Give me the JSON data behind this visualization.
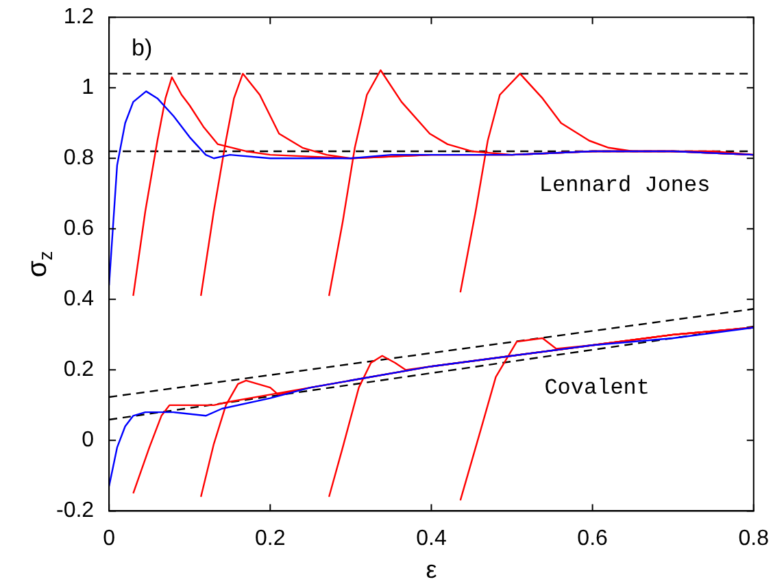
{
  "chart_data": {
    "type": "line",
    "xlabel": "ε",
    "ylabel": "σ$_{z}$",
    "xlim": [
      0,
      0.8
    ],
    "xticks": [
      0,
      0.2,
      0.4,
      0.6,
      0.8
    ],
    "ylim": [
      -0.2,
      1.2
    ],
    "yticks": [
      -0.2,
      0,
      0.2,
      0.4,
      0.6,
      0.8,
      1,
      1.2
    ],
    "grid": false,
    "legend": false,
    "marker": "none",
    "annotations": [
      "b)",
      "Lennard Jones",
      "Covalent"
    ],
    "series": [
      {
        "color": "#000000",
        "line_style": "dashed",
        "x": [
          0,
          0.8
        ],
        "values": [
          1.04,
          1.04
        ]
      },
      {
        "color": "#000000",
        "line_style": "dashed",
        "x": [
          0,
          0.8
        ],
        "values": [
          0.82,
          0.82
        ]
      },
      {
        "color": "#000000",
        "line_style": "dashed",
        "x": [
          0,
          0.8
        ],
        "values": [
          0.123,
          0.373
        ]
      },
      {
        "color": "#000000",
        "line_style": "dashed",
        "x": [
          0,
          0.8
        ],
        "values": [
          0.059,
          0.323
        ]
      },
      {
        "color": "#ff0000",
        "x": [
          0.03,
          0.045,
          0.06,
          0.07,
          0.078,
          0.09,
          0.1,
          0.117,
          0.135,
          0.17,
          0.2,
          0.3,
          0.4,
          0.5,
          0.6,
          0.7,
          0.8
        ],
        "values": [
          0.41,
          0.65,
          0.85,
          0.97,
          1.03,
          0.98,
          0.95,
          0.89,
          0.84,
          0.82,
          0.81,
          0.8,
          0.81,
          0.81,
          0.82,
          0.82,
          0.81
        ]
      },
      {
        "color": "#ff0000",
        "x": [
          0.114,
          0.13,
          0.145,
          0.155,
          0.166,
          0.187,
          0.211,
          0.24,
          0.27,
          0.3,
          0.4,
          0.5,
          0.6,
          0.7,
          0.8
        ],
        "values": [
          0.41,
          0.65,
          0.85,
          0.97,
          1.04,
          0.98,
          0.87,
          0.83,
          0.81,
          0.8,
          0.81,
          0.81,
          0.82,
          0.82,
          0.81
        ]
      },
      {
        "color": "#ff0000",
        "x": [
          0.273,
          0.29,
          0.305,
          0.32,
          0.337,
          0.363,
          0.398,
          0.42,
          0.45,
          0.5,
          0.6,
          0.7,
          0.8
        ],
        "values": [
          0.41,
          0.62,
          0.83,
          0.98,
          1.05,
          0.96,
          0.87,
          0.84,
          0.82,
          0.81,
          0.82,
          0.82,
          0.81
        ]
      },
      {
        "color": "#ff0000",
        "x": [
          0.436,
          0.455,
          0.47,
          0.485,
          0.51,
          0.538,
          0.561,
          0.596,
          0.62,
          0.65,
          0.7,
          0.75,
          0.8
        ],
        "values": [
          0.42,
          0.65,
          0.85,
          0.98,
          1.04,
          0.97,
          0.9,
          0.85,
          0.83,
          0.82,
          0.82,
          0.82,
          0.81
        ]
      },
      {
        "color": "#ff0000",
        "x": [
          0.03,
          0.05,
          0.065,
          0.075,
          0.1,
          0.13,
          0.15,
          0.2,
          0.25,
          0.3,
          0.4,
          0.5,
          0.6,
          0.7,
          0.8
        ],
        "values": [
          -0.15,
          -0.02,
          0.07,
          0.1,
          0.1,
          0.1,
          0.11,
          0.13,
          0.15,
          0.17,
          0.21,
          0.24,
          0.27,
          0.3,
          0.32
        ]
      },
      {
        "color": "#ff0000",
        "x": [
          0.114,
          0.13,
          0.145,
          0.16,
          0.17,
          0.2,
          0.21,
          0.25,
          0.3,
          0.4,
          0.5,
          0.6,
          0.7,
          0.8
        ],
        "values": [
          -0.16,
          -0.01,
          0.1,
          0.16,
          0.17,
          0.15,
          0.13,
          0.15,
          0.17,
          0.21,
          0.24,
          0.27,
          0.3,
          0.32
        ]
      },
      {
        "color": "#ff0000",
        "x": [
          0.273,
          0.29,
          0.31,
          0.325,
          0.339,
          0.355,
          0.368,
          0.4,
          0.5,
          0.6,
          0.7,
          0.8
        ],
        "values": [
          -0.16,
          -0.02,
          0.15,
          0.22,
          0.24,
          0.22,
          0.2,
          0.21,
          0.24,
          0.27,
          0.3,
          0.32
        ]
      },
      {
        "color": "#ff0000",
        "x": [
          0.436,
          0.46,
          0.48,
          0.506,
          0.538,
          0.555,
          0.6,
          0.7,
          0.8
        ],
        "values": [
          -0.17,
          0.02,
          0.18,
          0.28,
          0.29,
          0.26,
          0.27,
          0.3,
          0.32
        ]
      },
      {
        "color": "#0000ff",
        "x": [
          0,
          0.01,
          0.02,
          0.03,
          0.046,
          0.06,
          0.08,
          0.1,
          0.12,
          0.13,
          0.15,
          0.2,
          0.25,
          0.3,
          0.35,
          0.4,
          0.5,
          0.6,
          0.7,
          0.8
        ],
        "values": [
          0.44,
          0.78,
          0.9,
          0.96,
          0.99,
          0.97,
          0.92,
          0.86,
          0.81,
          0.8,
          0.81,
          0.8,
          0.8,
          0.8,
          0.81,
          0.81,
          0.81,
          0.82,
          0.82,
          0.81
        ]
      },
      {
        "color": "#0000ff",
        "x": [
          0,
          0.01,
          0.02,
          0.03,
          0.045,
          0.08,
          0.12,
          0.14,
          0.2,
          0.25,
          0.3,
          0.4,
          0.5,
          0.6,
          0.7,
          0.8
        ],
        "values": [
          -0.13,
          -0.02,
          0.04,
          0.07,
          0.08,
          0.08,
          0.07,
          0.09,
          0.12,
          0.15,
          0.17,
          0.21,
          0.24,
          0.27,
          0.29,
          0.32
        ]
      }
    ]
  }
}
